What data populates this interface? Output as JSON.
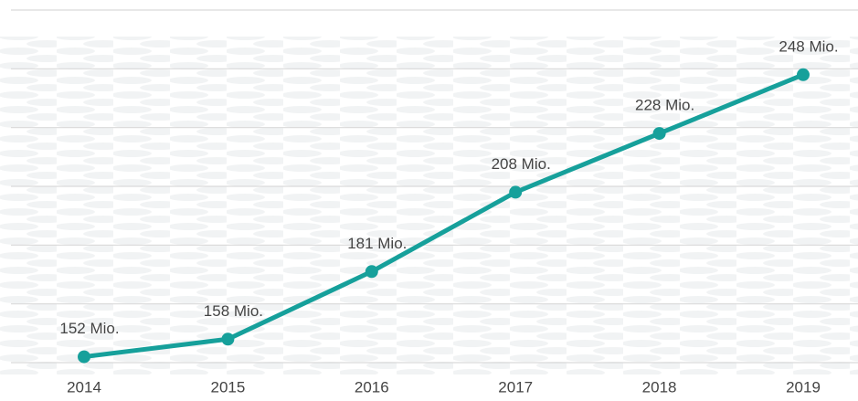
{
  "chart_data": {
    "type": "line",
    "categories": [
      "2014",
      "2015",
      "2016",
      "2017",
      "2018",
      "2019"
    ],
    "values": [
      152,
      158,
      181,
      208,
      228,
      248
    ],
    "value_labels": [
      "152 Mio.",
      "158 Mio.",
      "181 Mio.",
      "208 Mio.",
      "228 Mio.",
      "248 Mio."
    ],
    "color": "#16a09b",
    "ylim": [
      150,
      270
    ],
    "yticks": [
      150,
      170,
      190,
      210,
      230,
      250,
      270
    ],
    "grid": true
  }
}
